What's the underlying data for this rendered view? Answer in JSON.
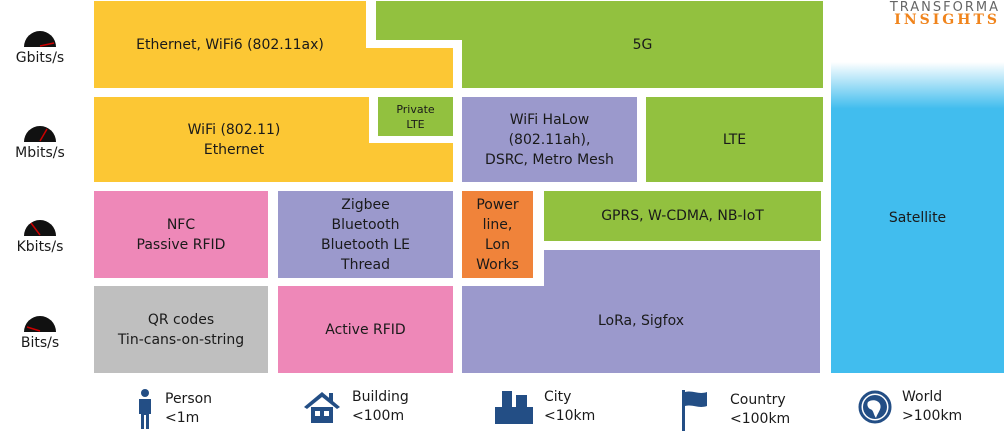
{
  "logo": {
    "line1": "TRANSFORMA",
    "line2": "INSIGHTS"
  },
  "speeds": [
    "Gbits/s",
    "Mbits/s",
    "Kbits/s",
    "Bits/s"
  ],
  "blocks": {
    "ethernet_wifi6": "Ethernet, WiFi6 (802.11ax)",
    "g5": "5G",
    "wifi": "WiFi (802.11)\nEthernet",
    "private_lte": "Private\nLTE",
    "halow": "WiFi HaLow\n(802.11ah),\nDSRC, Metro Mesh",
    "lte": "LTE",
    "satellite": "Satellite",
    "nfc": "NFC\nPassive RFID",
    "zigbee": "Zigbee\nBluetooth\nBluetooth LE\nThread",
    "powerline": "Power\nline,\nLon\nWorks",
    "gprs": "GPRS, W-CDMA, NB-IoT",
    "qr": "QR codes\nTin-cans-on-string",
    "active_rfid": "Active RFID",
    "lora": "LoRa, Sigfox"
  },
  "scales": [
    {
      "icon": "person-icon",
      "name": "Person",
      "range": "<1m"
    },
    {
      "icon": "house-icon",
      "name": "Building",
      "range": "<100m"
    },
    {
      "icon": "city-icon",
      "name": "City",
      "range": "<10km"
    },
    {
      "icon": "flag-icon",
      "name": "Country",
      "range": "<100km"
    },
    {
      "icon": "globe-icon",
      "name": "World",
      "range": ">100km"
    }
  ],
  "colors": {
    "yellow": "#fcc734",
    "green": "#92c13f",
    "purple": "#9b99cc",
    "pink": "#ee88b8",
    "orange": "#f0833a",
    "gray": "#bfbfbf",
    "blue": "#41bdee",
    "icon": "#234e85"
  }
}
